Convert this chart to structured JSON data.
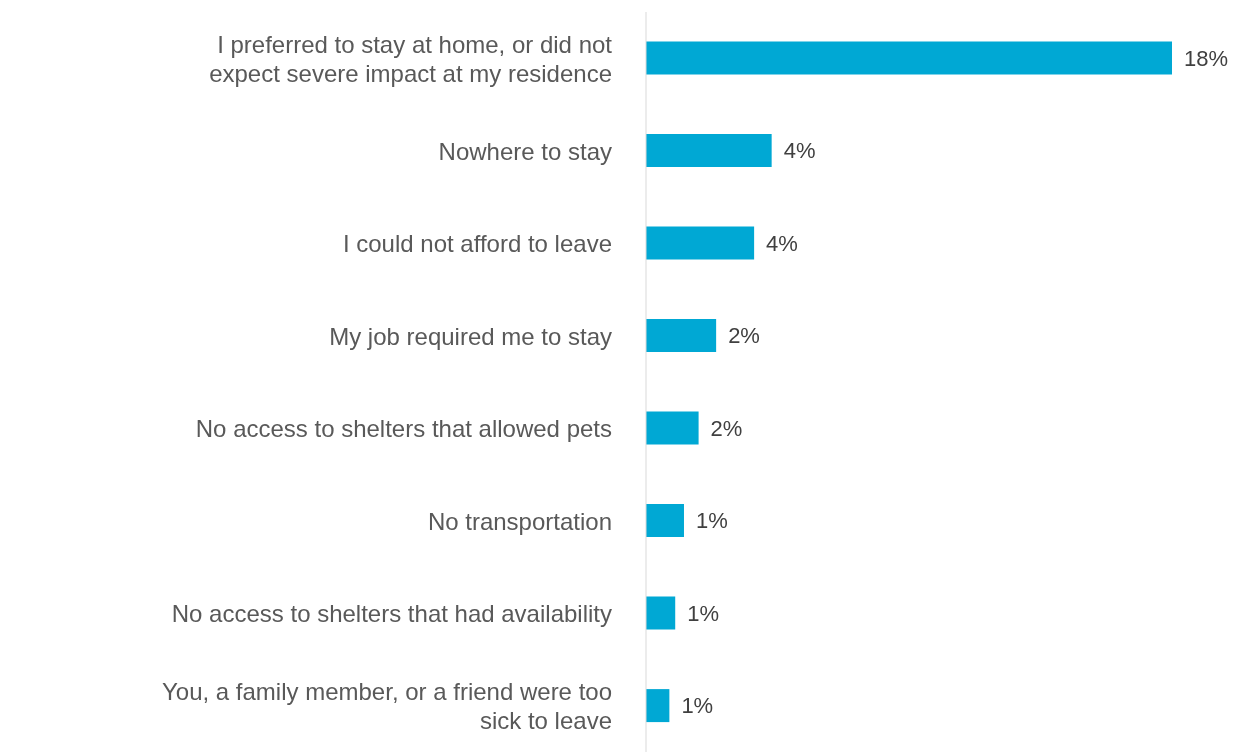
{
  "chart_data": {
    "type": "bar",
    "orientation": "horizontal",
    "categories": [
      "I preferred to stay at home, or did not expect severe impact at my residence",
      "Nowhere to stay",
      "I could not afford to leave",
      "My job required me to stay",
      "No access to shelters that allowed pets",
      "No transportation",
      "No access to shelters that had availability",
      "You, a family member, or a friend were too sick to leave"
    ],
    "values": [
      18,
      4.3,
      3.7,
      2.4,
      1.8,
      1.3,
      1.0,
      0.8
    ],
    "value_labels": [
      "18%",
      "4%",
      "4%",
      "2%",
      "2%",
      "1%",
      "1%",
      "1%"
    ],
    "color": "#00a8d4",
    "grid": false,
    "legend": false
  }
}
